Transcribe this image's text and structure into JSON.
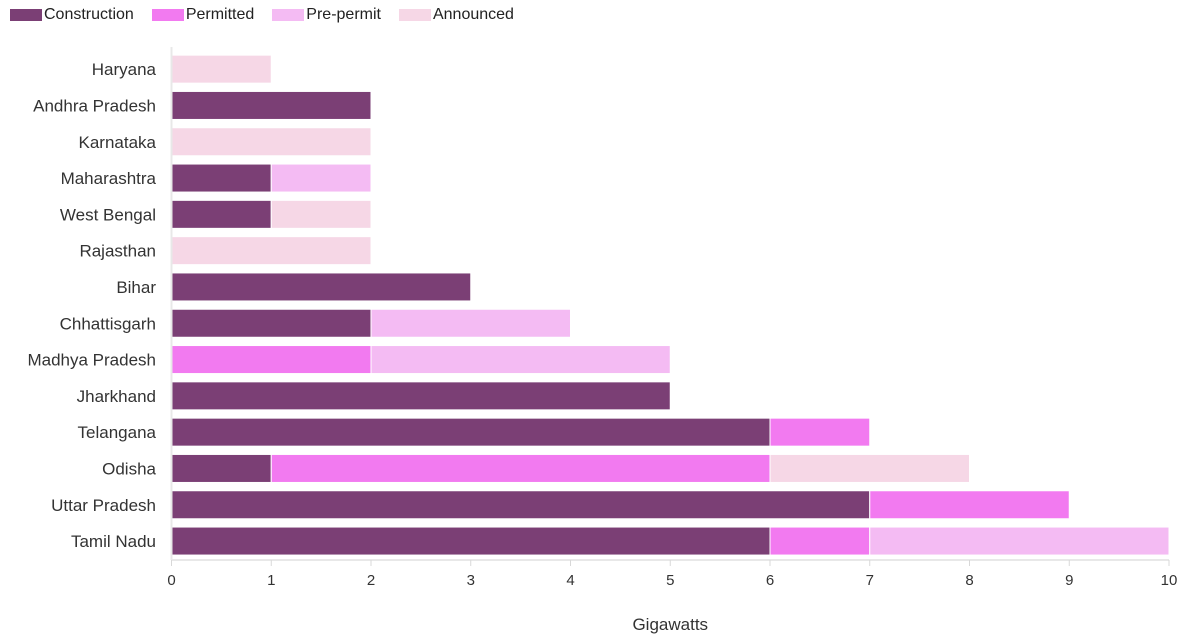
{
  "chart_data": {
    "type": "bar",
    "orientation": "horizontal",
    "stacked": true,
    "title": "",
    "xlabel": "Gigawatts",
    "ylabel": "",
    "xlim": [
      0,
      10
    ],
    "xticks": [
      0,
      1,
      2,
      3,
      4,
      5,
      6,
      7,
      8,
      9,
      10
    ],
    "grid": false,
    "legend_position": "top-left",
    "categories": [
      "Haryana",
      "Andhra Pradesh",
      "Karnataka",
      "Maharashtra",
      "West Bengal",
      "Rajasthan",
      "Bihar",
      "Chhattisgarh",
      "Madhya Pradesh",
      "Jharkhand",
      "Telangana",
      "Odisha",
      "Uttar Pradesh",
      "Tamil Nadu"
    ],
    "series": [
      {
        "name": "Construction",
        "color": "#7b3f75",
        "values": [
          0,
          2,
          0,
          1,
          1,
          0,
          3,
          2,
          0,
          5,
          6,
          1,
          7,
          6
        ]
      },
      {
        "name": "Permitted",
        "color": "#f27af0",
        "values": [
          0,
          0,
          0,
          0,
          0,
          0,
          0,
          0,
          2,
          0,
          1,
          5,
          2,
          1
        ]
      },
      {
        "name": "Pre-permit",
        "color": "#f4bbf3",
        "values": [
          0,
          0,
          0,
          1,
          0,
          0,
          0,
          2,
          3,
          0,
          0,
          0,
          0,
          3
        ]
      },
      {
        "name": "Announced",
        "color": "#f6d7e6",
        "values": [
          1,
          0,
          2,
          0,
          1,
          2,
          0,
          0,
          0,
          0,
          0,
          2,
          0,
          0
        ]
      }
    ]
  }
}
